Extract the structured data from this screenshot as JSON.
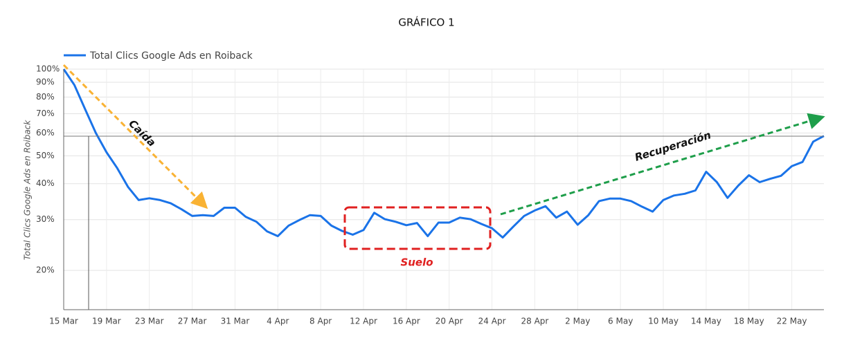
{
  "chart_data": {
    "type": "line",
    "title": "GRÁFICO 1",
    "y_label": "Total Clics Google Ads en Roiback",
    "categories": [
      "15 Mar",
      null,
      null,
      null,
      "19 Mar",
      null,
      null,
      null,
      "23 Mar",
      null,
      null,
      null,
      "27 Mar",
      null,
      null,
      null,
      "31 Mar",
      null,
      null,
      null,
      "4 Apr",
      null,
      null,
      null,
      "8 Apr",
      null,
      null,
      null,
      "12 Apr",
      null,
      null,
      null,
      "16 Apr",
      null,
      null,
      null,
      "20 Apr",
      null,
      null,
      null,
      "24 Apr",
      null,
      null,
      null,
      "28 Apr",
      null,
      null,
      null,
      "2 May",
      null,
      null,
      null,
      "6 May",
      null,
      null,
      null,
      "10 May",
      null,
      null,
      null,
      "14 May",
      null,
      null,
      null,
      "18 May",
      null,
      null,
      null,
      "22 May",
      null,
      null,
      null
    ],
    "series": [
      {
        "name": "Total Clics Google Ads en Roiback",
        "color": "#1a73e8",
        "values": [
          100,
          88,
          72.6,
          60,
          51.4,
          45.3,
          39,
          35.1,
          35.6,
          35.1,
          34.2,
          32.6,
          30.9,
          31.1,
          30.9,
          33,
          33,
          30.7,
          29.5,
          27.3,
          26.3,
          28.6,
          29.9,
          31.1,
          30.9,
          28.6,
          27.4,
          26.6,
          27.6,
          31.7,
          30.1,
          29.5,
          28.7,
          29.2,
          26.3,
          29.3,
          29.3,
          30.5,
          30.1,
          29,
          28,
          26,
          28.4,
          30.9,
          32.3,
          33.4,
          30.5,
          32,
          28.8,
          31.1,
          34.8,
          35.5,
          35.5,
          34.8,
          33.3,
          32,
          35.1,
          36.4,
          36.9,
          37.9,
          44,
          40.5,
          35.7,
          39.4,
          42.8,
          40.5,
          41.6,
          42.6,
          46,
          47.6,
          56,
          58.6
        ]
      }
    ],
    "ylim": [
      14.6,
      100
    ],
    "log_scale": true,
    "grid": true,
    "yticks": [
      {
        "value": 20,
        "label": "20%"
      },
      {
        "value": 30,
        "label": "30%"
      },
      {
        "value": 40,
        "label": "40%"
      },
      {
        "value": 50,
        "label": "50%"
      },
      {
        "value": 60,
        "label": "60%"
      },
      {
        "value": 70,
        "label": "70%"
      },
      {
        "value": 80,
        "label": "80%"
      },
      {
        "value": 90,
        "label": "90%"
      },
      {
        "value": 100,
        "label": "100%"
      }
    ],
    "annotations": [
      "Caída",
      "Suelo",
      "Recuperación"
    ]
  }
}
